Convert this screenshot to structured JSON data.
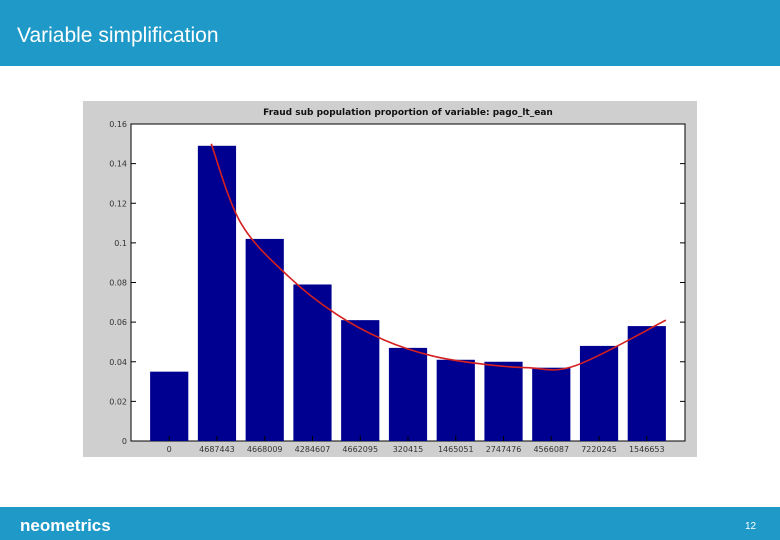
{
  "slide": {
    "title": "Variable simplification",
    "brand": "neometrics",
    "page_number": "12"
  },
  "colors": {
    "bar": "#000090",
    "trend": "#d42020",
    "header": "#1f9ac8",
    "figure_bg": "#cfcfcf"
  },
  "chart_data": {
    "type": "bar",
    "title": "Fraud sub population proportion of variable: pago_lt_ean",
    "categories": [
      "0",
      "4687443",
      "4668009",
      "4284607",
      "4662095",
      "320415",
      "1465051",
      "2747476",
      "4566087",
      "7220245",
      "1546653"
    ],
    "values": [
      0.035,
      0.149,
      0.102,
      0.079,
      0.061,
      0.047,
      0.041,
      0.04,
      0.037,
      0.048,
      0.058
    ],
    "yticks": [
      0,
      0.02,
      0.04,
      0.06,
      0.08,
      0.1,
      0.12,
      0.14,
      0.16
    ],
    "ytick_labels": [
      "0",
      "0.02",
      "0.04",
      "0.06",
      "0.08",
      "0.1",
      "0.12",
      "0.14",
      "0.16"
    ],
    "ylim": [
      0,
      0.16
    ],
    "grid": false,
    "trend_line": [
      0.15,
      0.11,
      0.083,
      0.064,
      0.051,
      0.043,
      0.039,
      0.037,
      0.038,
      0.042,
      0.061
    ]
  }
}
